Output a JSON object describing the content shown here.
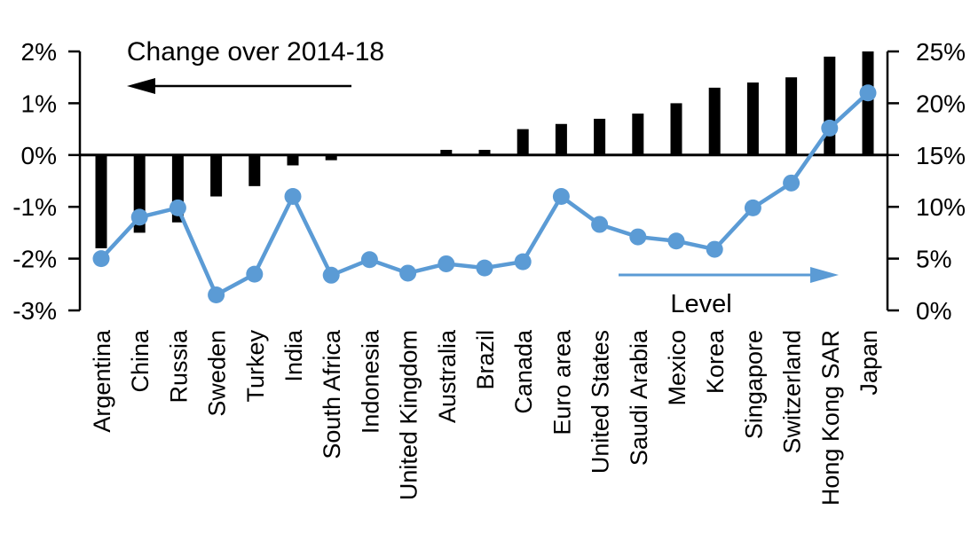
{
  "chart_data": {
    "type": "combo-bar-line",
    "title": "",
    "categories": [
      "Argentina",
      "China",
      "Russia",
      "Sweden",
      "Turkey",
      "India",
      "South Africa",
      "Indonesia",
      "United Kingdom",
      "Australia",
      "Brazil",
      "Canada",
      "Euro area",
      "United States",
      "Saudi Arabia",
      "Mexico",
      "Korea",
      "Singapore",
      "Switzerland",
      "Hong Kong SAR",
      "Japan"
    ],
    "series": [
      {
        "name": "Change over 2014-18",
        "type": "bar",
        "axis": "left",
        "color": "#000000",
        "values": [
          -1.8,
          -1.5,
          -1.3,
          -0.8,
          -0.6,
          -0.2,
          -0.1,
          0,
          0,
          0.1,
          0.1,
          0.5,
          0.6,
          0.7,
          0.8,
          1.0,
          1.3,
          1.4,
          1.5,
          1.9,
          2.0
        ]
      },
      {
        "name": "Level",
        "type": "line",
        "axis": "right",
        "color": "#5B9BD5",
        "values": [
          5.0,
          9.0,
          9.9,
          1.5,
          3.5,
          11.0,
          3.4,
          4.9,
          3.6,
          4.5,
          4.1,
          4.7,
          11.0,
          8.3,
          7.1,
          6.7,
          5.9,
          9.9,
          12.3,
          17.6,
          21.0
        ]
      }
    ],
    "left_axis": {
      "min": -3,
      "max": 2,
      "ticks": [
        {
          "value": 2,
          "label": "2%"
        },
        {
          "value": 1,
          "label": "1%"
        },
        {
          "value": 0,
          "label": "0%"
        },
        {
          "value": -1,
          "label": "-1%"
        },
        {
          "value": -2,
          "label": "-2%"
        },
        {
          "value": -3,
          "label": "-3%"
        }
      ]
    },
    "right_axis": {
      "min": 0,
      "max": 25,
      "ticks": [
        {
          "value": 25,
          "label": "25%"
        },
        {
          "value": 20,
          "label": "20%"
        },
        {
          "value": 15,
          "label": "15%"
        },
        {
          "value": 10,
          "label": "10%"
        },
        {
          "value": 5,
          "label": "5%"
        },
        {
          "value": 0,
          "label": "0%"
        }
      ]
    },
    "annotations": [
      {
        "id": "bars-label",
        "text": "Change over 2014-18",
        "arrow": "left",
        "color": "#000000"
      },
      {
        "id": "line-label",
        "text": "Level",
        "arrow": "right",
        "color": "#5B9BD5"
      }
    ],
    "legend_position": "none",
    "grid": false
  }
}
